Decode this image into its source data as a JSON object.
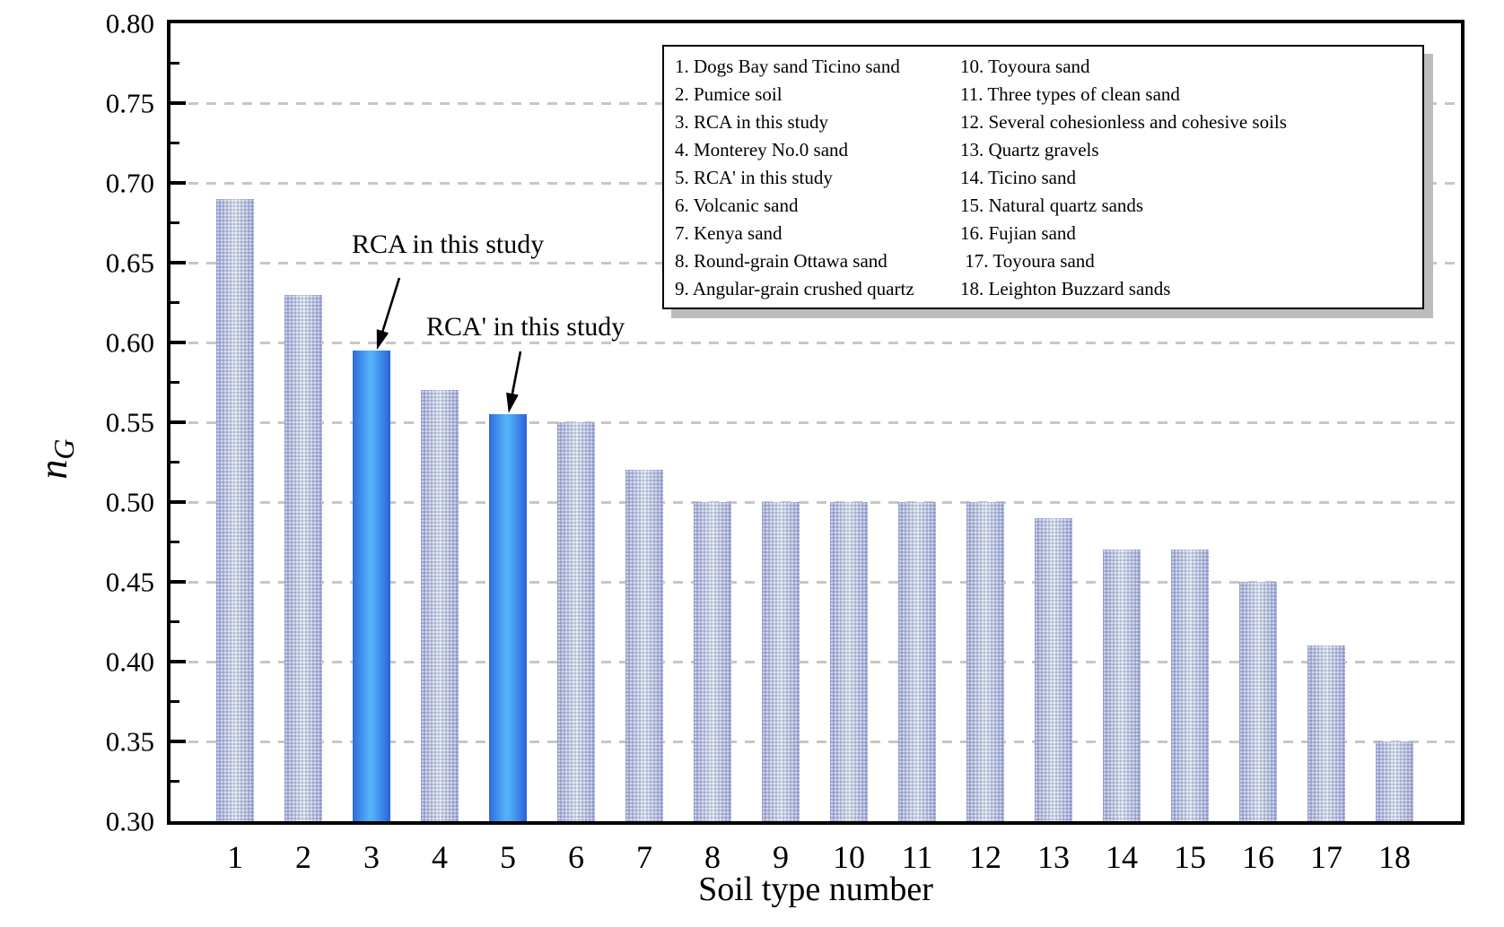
{
  "chart_data": {
    "type": "bar",
    "xlabel": "Soil type number",
    "ylabel_base": "n",
    "ylabel_sub": "G",
    "categories": [
      "1",
      "2",
      "3",
      "4",
      "5",
      "6",
      "7",
      "8",
      "9",
      "10",
      "11",
      "12",
      "13",
      "14",
      "15",
      "16",
      "17",
      "18"
    ],
    "values": [
      0.69,
      0.63,
      0.595,
      0.57,
      0.555,
      0.55,
      0.52,
      0.5,
      0.5,
      0.5,
      0.5,
      0.5,
      0.49,
      0.47,
      0.47,
      0.45,
      0.41,
      0.35
    ],
    "ylim": [
      0.3,
      0.8
    ],
    "ytick_step": 0.05,
    "ytick_labels": [
      "0.80",
      "0.75",
      "0.70",
      "0.65",
      "0.60",
      "0.55",
      "0.50",
      "0.45",
      "0.40",
      "0.35",
      "0.30"
    ],
    "grid": "horizontal-dashed",
    "gridline_color": "#c7c7c7",
    "highlighted_bars": [
      "3",
      "5"
    ],
    "bar_color_normal": {
      "edge": "#99a3d0",
      "center": "#d8dfe9"
    },
    "bar_color_highlight": {
      "edge": "#2e6ade",
      "center": "#55b2f9"
    },
    "annotations": [
      {
        "text": "RCA in this study",
        "target_category": "3"
      },
      {
        "text": "RCA' in this study",
        "target_category": "5"
      }
    ],
    "legend": {
      "position": "top-right",
      "columns": 2,
      "items": [
        "1. Dogs Bay sand Ticino sand",
        "2. Pumice soil",
        "3. RCA in this study",
        "4. Monterey No.0 sand",
        "5. RCA' in this study",
        "6. Volcanic sand",
        "7. Kenya sand",
        "8. Round-grain Ottawa sand",
        "9. Angular-grain crushed quartz",
        "10. Toyoura sand",
        "11. Three types of clean sand",
        "12. Several cohesionless and cohesive soils",
        "13. Quartz gravels",
        "14. Ticino sand",
        "15. Natural quartz sands",
        "16. Fujian sand",
        " 17. Toyoura sand",
        "18. Leighton Buzzard sands"
      ]
    }
  }
}
